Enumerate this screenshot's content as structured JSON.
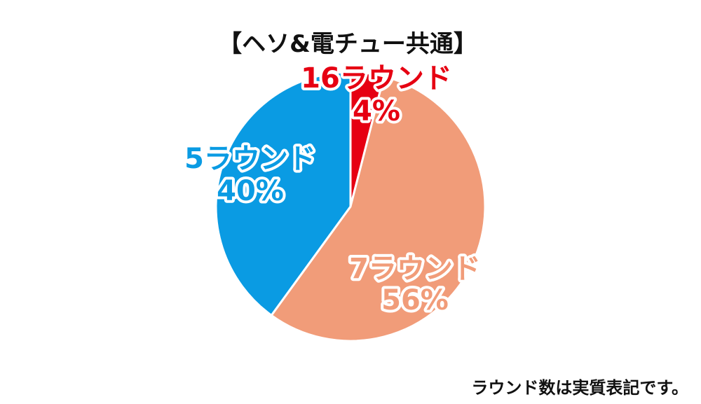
{
  "chart_data": {
    "type": "pie",
    "title": "【ヘソ&電チュー共通】",
    "start": "top",
    "direction": "clockwise",
    "slices": [
      {
        "label": "16ラウンド",
        "value": 4,
        "value_label": "4%",
        "color": "#e60012",
        "label_color": "#e60012"
      },
      {
        "label": "7ラウンド",
        "value": 56,
        "value_label": "56%",
        "color": "#f19c79",
        "label_color": "#f19c79"
      },
      {
        "label": "5ラウンド",
        "value": 40,
        "value_label": "40%",
        "color": "#0a9be3",
        "label_color": "#0a9be3"
      }
    ]
  },
  "footnote": "ラウンド数は実質表記です。"
}
